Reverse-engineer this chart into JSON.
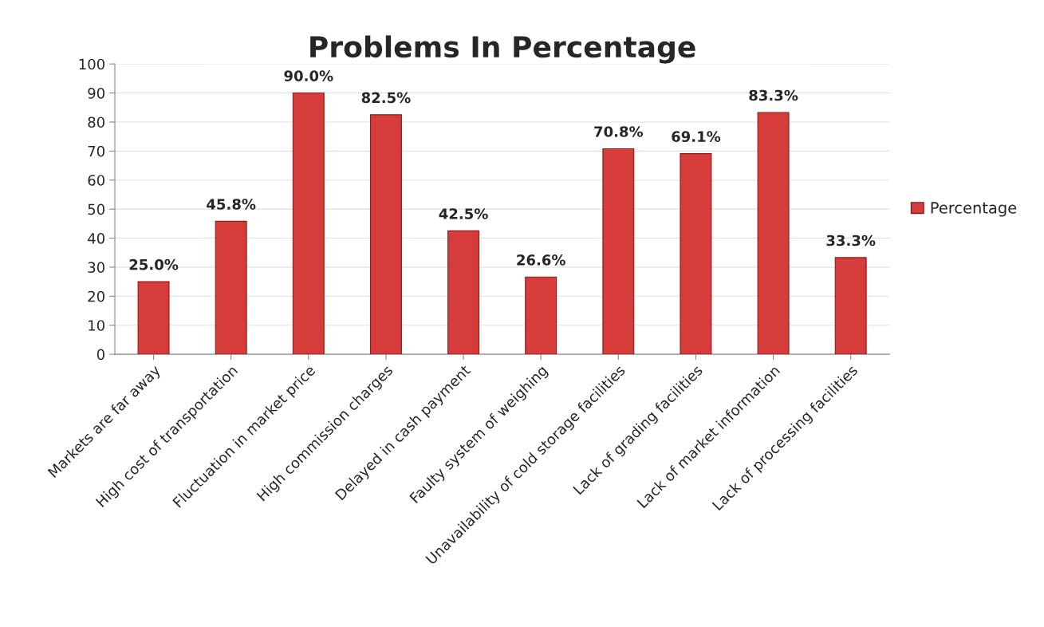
{
  "chart_data": {
    "type": "bar",
    "title": "Problems In Percentage",
    "categories": [
      "Markets are far away",
      "High cost of transportation",
      "Fluctuation in market price",
      "High commission charges",
      "Delayed in cash payment",
      "Faulty system of weighing",
      "Unavailability of cold storage facilities",
      "Lack of grading facilities",
      "Lack of market information",
      "Lack of processing facilities"
    ],
    "series": [
      {
        "name": "Percentage",
        "color": "#d63c3a",
        "values": [
          25.0,
          45.8,
          90.0,
          82.5,
          42.5,
          26.6,
          70.8,
          69.1,
          83.3,
          33.3
        ],
        "value_labels": [
          "25.0%",
          "45.8%",
          "90.0%",
          "82.5%",
          "42.5%",
          "26.6%",
          "70.8%",
          "69.1%",
          "83.3%",
          "33.3%"
        ]
      }
    ],
    "ylim": [
      0,
      100
    ],
    "yticks": [
      0,
      10,
      20,
      30,
      40,
      50,
      60,
      70,
      80,
      90,
      100
    ],
    "grid": "y",
    "legend": "right"
  }
}
